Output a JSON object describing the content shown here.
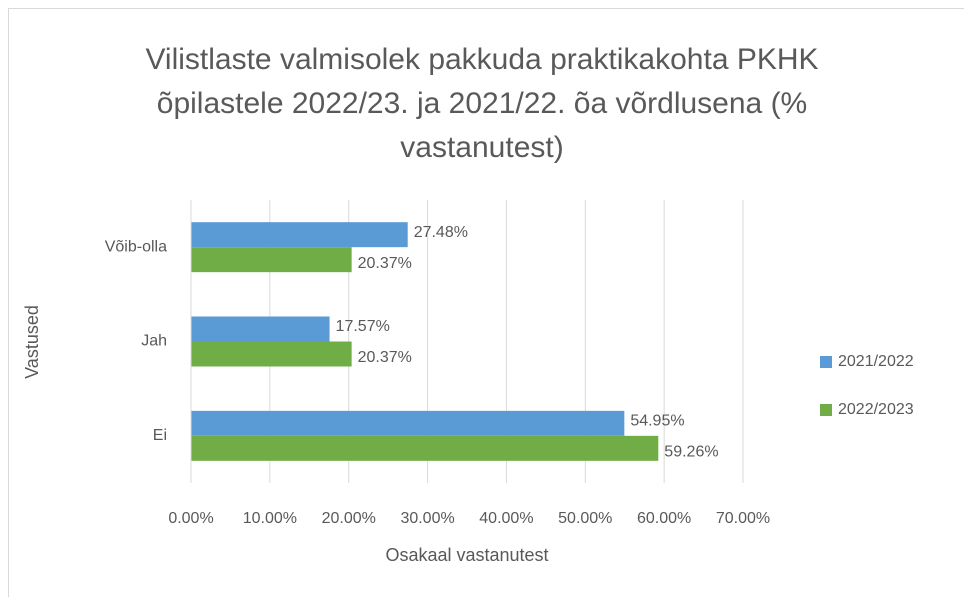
{
  "chart_data": {
    "type": "bar",
    "orientation": "horizontal",
    "title": "Vilistlaste valmisolek pakkuda praktikakohta PKHK õpilastele 2022/23. ja 2021/22. õa võrdlusena (% vastanutest)",
    "x_label": "Osakaal vastanutest",
    "y_label": "Vastused",
    "categories": [
      "Ei",
      "Jah",
      "Võib-olla"
    ],
    "series": [
      {
        "name": "2021/2022",
        "color": "#5b9bd5",
        "values": [
          54.95,
          17.57,
          27.48
        ],
        "value_labels": [
          "54.95%",
          "17.57%",
          "27.48%"
        ]
      },
      {
        "name": "2022/2023",
        "color": "#70ad47",
        "values": [
          59.26,
          20.37,
          20.37
        ],
        "value_labels": [
          "59.26%",
          "20.37%",
          "20.37%"
        ]
      }
    ],
    "xlim": [
      0,
      70
    ],
    "xticks": [
      {
        "value": 0,
        "label": "0.00%"
      },
      {
        "value": 10,
        "label": "10.00%"
      },
      {
        "value": 20,
        "label": "20.00%"
      },
      {
        "value": 30,
        "label": "30.00%"
      },
      {
        "value": 40,
        "label": "40.00%"
      },
      {
        "value": 50,
        "label": "50.00%"
      },
      {
        "value": 60,
        "label": "60.00%"
      },
      {
        "value": 70,
        "label": "70.00%"
      }
    ],
    "grid": true,
    "legend": "right"
  }
}
